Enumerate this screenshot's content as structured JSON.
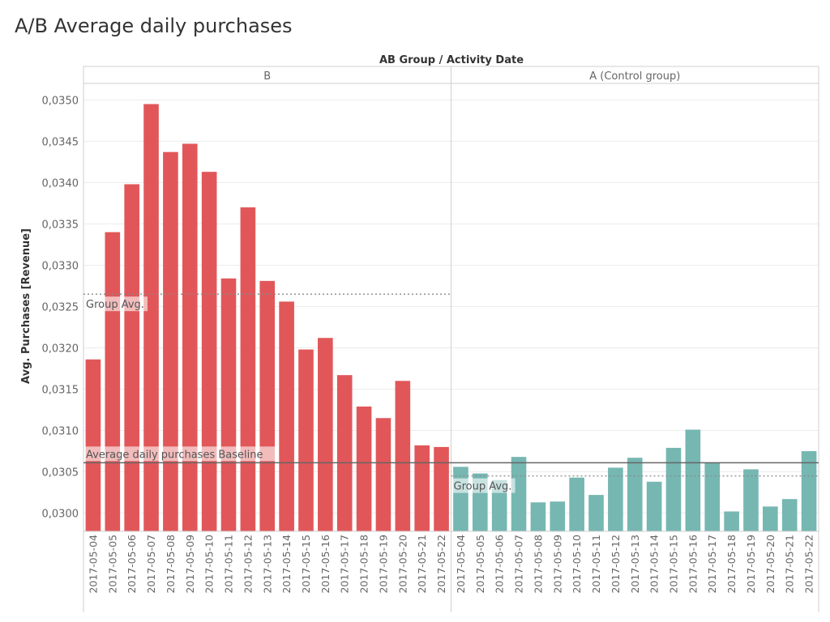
{
  "chart_data": {
    "type": "bar",
    "title": "A/B Average daily purchases",
    "column_header": "AB Group  /  Activity Date",
    "ylabel": "Avg. Purchases [Revenue]",
    "ylim": [
      0.02978,
      0.0352
    ],
    "yticks": [
      "0,0300",
      "0,0305",
      "0,0310",
      "0,0315",
      "0,0320",
      "0,0325",
      "0,0330",
      "0,0335",
      "0,0340",
      "0,0345",
      "0,0350"
    ],
    "ytick_values": [
      0.03,
      0.0305,
      0.031,
      0.0315,
      0.032,
      0.0325,
      0.033,
      0.0335,
      0.034,
      0.0345,
      0.035
    ],
    "grid": true,
    "panes": [
      {
        "name": "B",
        "color": "#e15759",
        "group_avg": 0.03265,
        "group_avg_label": "Group Avg.",
        "dates": [
          "2017-05-04",
          "2017-05-05",
          "2017-05-06",
          "2017-05-07",
          "2017-05-08",
          "2017-05-09",
          "2017-05-10",
          "2017-05-11",
          "2017-05-12",
          "2017-05-13",
          "2017-05-14",
          "2017-05-15",
          "2017-05-16",
          "2017-05-17",
          "2017-05-18",
          "2017-05-19",
          "2017-05-20",
          "2017-05-21",
          "2017-05-22"
        ],
        "values": [
          0.03186,
          0.0334,
          0.03398,
          0.03495,
          0.03437,
          0.03447,
          0.03413,
          0.03284,
          0.0337,
          0.03281,
          0.03256,
          0.03198,
          0.03212,
          0.03167,
          0.03129,
          0.03115,
          0.0316,
          0.03082,
          0.0308
        ]
      },
      {
        "name": "A (Control group)",
        "color": "#76b7b2",
        "group_avg": 0.03045,
        "group_avg_label": "Group Avg.",
        "dates": [
          "2017-05-04",
          "2017-05-05",
          "2017-05-06",
          "2017-05-07",
          "2017-05-08",
          "2017-05-09",
          "2017-05-10",
          "2017-05-11",
          "2017-05-12",
          "2017-05-13",
          "2017-05-14",
          "2017-05-15",
          "2017-05-16",
          "2017-05-17",
          "2017-05-18",
          "2017-05-19",
          "2017-05-20",
          "2017-05-21",
          "2017-05-22"
        ],
        "values": [
          0.03056,
          0.03048,
          0.0304,
          0.03068,
          0.03013,
          0.03014,
          0.03043,
          0.03022,
          0.03055,
          0.03067,
          0.03038,
          0.03079,
          0.03101,
          0.03061,
          0.03002,
          0.03053,
          0.03008,
          0.03017,
          0.03075
        ]
      }
    ],
    "baseline": {
      "value": 0.03061,
      "label": "Average daily purchases Baseline",
      "color": "#666666"
    }
  }
}
